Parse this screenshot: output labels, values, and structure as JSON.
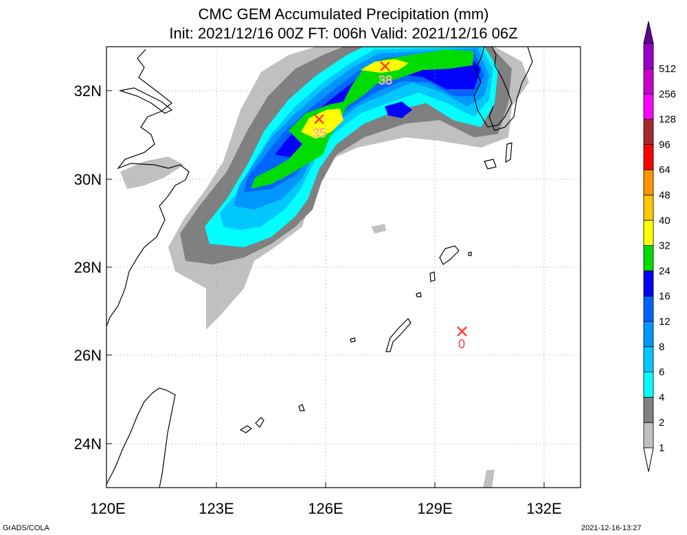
{
  "title_line1": "CMC GEM Accumulated Precipitation (mm)",
  "title_line2": "Init: 2021/12/16 00Z  FT: 006h  Valid: 2021/12/16 06Z",
  "footer_left": "GrADS/COLA",
  "footer_right": "2021-12-16-13:27",
  "x_tick_labels": [
    "120E",
    "123E",
    "126E",
    "129E",
    "132E"
  ],
  "y_tick_labels": [
    "24N",
    "26N",
    "28N",
    "30N",
    "32N"
  ],
  "colorbar": {
    "labels": [
      "1",
      "2",
      "4",
      "6",
      "8",
      "12",
      "16",
      "24",
      "32",
      "40",
      "48",
      "64",
      "96",
      "128",
      "256",
      "512"
    ],
    "colors": [
      "#c0c0c0",
      "#808080",
      "#00ffff",
      "#00c8ff",
      "#0096ff",
      "#0064ff",
      "#0000ff",
      "#00dc00",
      "#ffff00",
      "#ffc800",
      "#ff9600",
      "#ff0000",
      "#a52a2a",
      "#ff00ff",
      "#c800c8",
      "#9600c8",
      "#640096"
    ]
  },
  "markers": [
    {
      "label": "35",
      "value": 35
    },
    {
      "label": "38",
      "value": 38
    },
    {
      "label": "0",
      "value": 0
    }
  ],
  "colors": {
    "light_gray": "#c0c0c0",
    "dark_gray": "#808080",
    "cyan": "#00ffff",
    "sky": "#00c8ff",
    "blue1": "#0096ff",
    "blue2": "#0064ff",
    "blue3": "#0000ff",
    "green": "#00dc00",
    "yellow": "#ffff00",
    "grid": "#999999",
    "coast": "#000000",
    "marker": "#ff3c3c"
  }
}
